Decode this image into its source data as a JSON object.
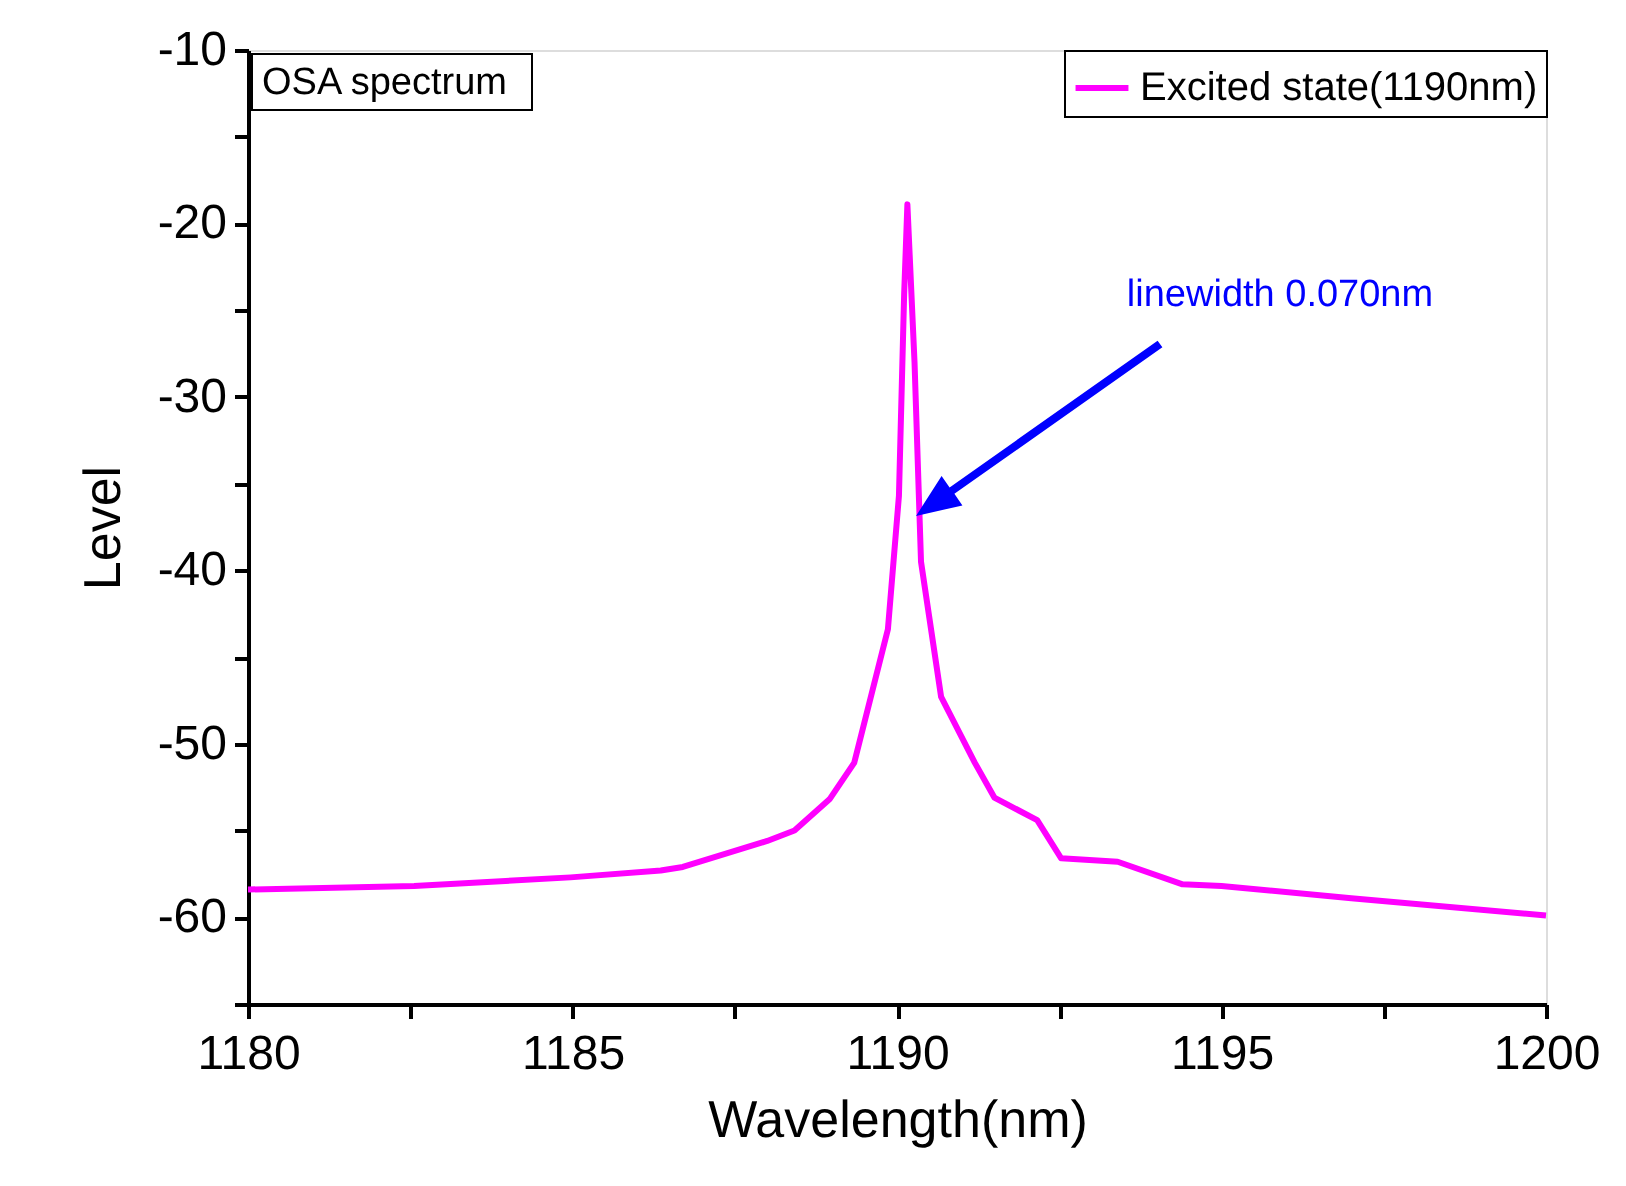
{
  "chart_data": {
    "type": "line",
    "xlabel": "Wavelength(nm)",
    "ylabel": "Level",
    "xlim": [
      1180,
      1200
    ],
    "ylim": [
      -65,
      -10
    ],
    "xticks": [
      1180,
      {
        "value": 1182.5,
        "label": null
      },
      1185,
      {
        "value": 1187.5,
        "label": null
      },
      1190,
      {
        "value": 1192.5,
        "label": null
      },
      1195,
      {
        "value": 1197.5,
        "label": null
      },
      1200
    ],
    "yticks": [
      {
        "value": -65,
        "label": null
      },
      -60,
      {
        "value": -55,
        "label": null
      },
      -50,
      {
        "value": -45,
        "label": null
      },
      -40,
      {
        "value": -35,
        "label": null
      },
      -30,
      {
        "value": -25,
        "label": null
      },
      -20,
      {
        "value": -15,
        "label": null
      },
      -10
    ],
    "grid": false,
    "legend": "top right",
    "marker": "none",
    "line_style": "solid",
    "series": [
      {
        "name": "Excited state(1190nm)",
        "color": "#ff00ff",
        "x": [
          1180,
          1182.56,
          1184.97,
          1186.36,
          1186.7,
          1188.0,
          1188.42,
          1188.96,
          1189.34,
          1189.86,
          1190.03,
          1190.11,
          1190.16,
          1190.27,
          1190.37,
          1190.68,
          1191.2,
          1191.5,
          1192.16,
          1192.53,
          1193.4,
          1194.4,
          1195.0,
          1197.0,
          1200
        ],
        "values": [
          -58.4,
          -58.2,
          -57.7,
          -57.3,
          -57.1,
          -55.6,
          -55.0,
          -53.2,
          -51.1,
          -43.4,
          -35.7,
          -24.1,
          -18.9,
          -28.0,
          -39.5,
          -47.3,
          -51.1,
          -53.1,
          -54.4,
          -56.6,
          -56.8,
          -58.1,
          -58.2,
          -58.9,
          -59.9
        ]
      }
    ],
    "annotations": [
      "OSA spectrum",
      "linewidth 0.070nm"
    ]
  }
}
